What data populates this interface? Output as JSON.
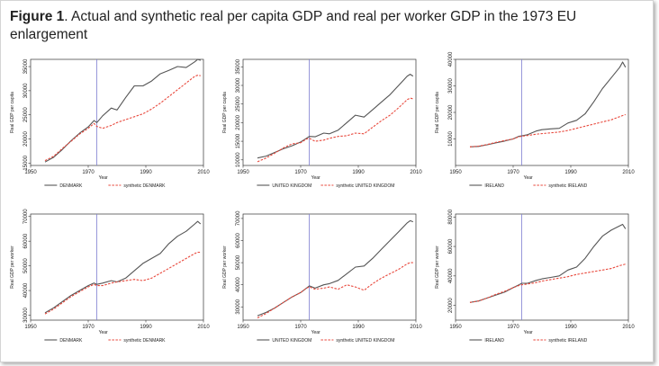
{
  "figure": {
    "label": "Figure 1",
    "caption": ". Actual and synthetic real per capita GDP and real per worker GDP in the 1973 EU enlargement"
  },
  "colors": {
    "actual": "#555555",
    "synthetic": "#e8483c",
    "treatment": "#7f7fd0"
  },
  "chart_data": [
    {
      "type": "line",
      "country": "DENMARK",
      "measure": "per capita",
      "xlabel": "Year",
      "ylabel": "Real GDP per capita",
      "xticks": [
        "1950",
        "1970",
        "1990",
        "2010"
      ],
      "xlim": [
        1950,
        2010
      ],
      "yticks": [
        "15000",
        "20000",
        "25000",
        "30000",
        "35000"
      ],
      "ylim": [
        14500,
        36500
      ],
      "treatment_year": 1973,
      "series": [
        {
          "name": "DENMARK",
          "style": "solid",
          "x": [
            1955,
            1958,
            1961,
            1964,
            1967,
            1970,
            1972,
            1973,
            1975,
            1978,
            1980,
            1983,
            1986,
            1989,
            1992,
            1995,
            1998,
            2001,
            2004,
            2007,
            2008,
            2009
          ],
          "y": [
            15200,
            16200,
            17800,
            19600,
            21200,
            22500,
            23800,
            23400,
            24800,
            26400,
            26000,
            28600,
            31000,
            31000,
            32000,
            33500,
            34200,
            35000,
            34800,
            36000,
            36500,
            36300
          ]
        },
        {
          "name": "synthetic DENMARK",
          "style": "dashed",
          "x": [
            1955,
            1958,
            1961,
            1964,
            1967,
            1970,
            1972,
            1973,
            1975,
            1978,
            1980,
            1983,
            1986,
            1989,
            1992,
            1995,
            1998,
            2001,
            2004,
            2007,
            2008,
            2009
          ],
          "y": [
            15500,
            16400,
            18000,
            19500,
            21000,
            22200,
            23200,
            22600,
            22200,
            22800,
            23400,
            24000,
            24600,
            25200,
            26200,
            27400,
            28800,
            30200,
            31600,
            33000,
            33200,
            33100
          ]
        }
      ]
    },
    {
      "type": "line",
      "country": "UNITED KINGDOM",
      "measure": "per capita",
      "xlabel": "Year",
      "ylabel": "Real GDP per capita",
      "xticks": [
        "1950",
        "1970",
        "1990",
        "2010"
      ],
      "xlim": [
        1950,
        2010
      ],
      "yticks": [
        "10000",
        "15000",
        "20000",
        "25000",
        "30000",
        "35000"
      ],
      "ylim": [
        8500,
        37000
      ],
      "treatment_year": 1973,
      "series": [
        {
          "name": "UNITED KINGDOM",
          "style": "solid",
          "x": [
            1955,
            1958,
            1961,
            1964,
            1967,
            1970,
            1972,
            1973,
            1975,
            1978,
            1980,
            1983,
            1986,
            1989,
            1992,
            1995,
            1998,
            2001,
            2004,
            2007,
            2008,
            2009
          ],
          "y": [
            10500,
            11000,
            12000,
            13000,
            13800,
            14800,
            15800,
            16300,
            16200,
            17200,
            17000,
            18000,
            20000,
            22000,
            21500,
            23500,
            25500,
            27500,
            30000,
            32500,
            33000,
            32500
          ]
        },
        {
          "name": "synthetic UNITED KINGDOM",
          "style": "dashed",
          "x": [
            1955,
            1958,
            1961,
            1964,
            1967,
            1970,
            1972,
            1973,
            1975,
            1978,
            1980,
            1983,
            1986,
            1989,
            1992,
            1995,
            1998,
            2001,
            2004,
            2007,
            2008,
            2009
          ],
          "y": [
            9500,
            10500,
            11800,
            13200,
            14300,
            14600,
            15600,
            15800,
            15000,
            15300,
            15800,
            16300,
            16500,
            17200,
            17000,
            18800,
            20500,
            22000,
            24000,
            26200,
            26600,
            26400
          ]
        }
      ]
    },
    {
      "type": "line",
      "country": "IRELAND",
      "measure": "per capita",
      "xlabel": "Year",
      "ylabel": "Real GDP per capita",
      "xticks": [
        "1950",
        "1970",
        "1990",
        "2010"
      ],
      "xlim": [
        1950,
        2010
      ],
      "yticks": [
        "10000",
        "20000",
        "30000",
        "40000"
      ],
      "ylim": [
        0,
        40000
      ],
      "treatment_year": 1973,
      "series": [
        {
          "name": "IRELAND",
          "style": "solid",
          "x": [
            1955,
            1958,
            1961,
            1964,
            1967,
            1970,
            1972,
            1973,
            1975,
            1978,
            1980,
            1983,
            1986,
            1989,
            1992,
            1995,
            1998,
            2001,
            2004,
            2007,
            2008,
            2009
          ],
          "y": [
            7000,
            7200,
            7800,
            8500,
            9200,
            10000,
            11000,
            11200,
            11600,
            13000,
            13500,
            13800,
            14000,
            16000,
            17000,
            19500,
            24000,
            29000,
            33000,
            37000,
            39000,
            37000
          ]
        },
        {
          "name": "synthetic IRELAND",
          "style": "dashed",
          "x": [
            1955,
            1958,
            1961,
            1964,
            1967,
            1970,
            1972,
            1973,
            1975,
            1978,
            1980,
            1983,
            1986,
            1989,
            1992,
            1995,
            1998,
            2001,
            2004,
            2007,
            2008,
            2009
          ],
          "y": [
            7000,
            7300,
            7900,
            8700,
            9400,
            10000,
            10800,
            11000,
            11300,
            11800,
            12000,
            12300,
            12600,
            13200,
            14000,
            14800,
            15600,
            16400,
            17200,
            18400,
            18800,
            19200
          ]
        }
      ]
    },
    {
      "type": "line",
      "country": "DENMARK",
      "measure": "per worker",
      "xlabel": "Year",
      "ylabel": "Real GDP per worker",
      "xticks": [
        "1950",
        "1970",
        "1990",
        "2010"
      ],
      "xlim": [
        1950,
        2010
      ],
      "yticks": [
        "30000",
        "40000",
        "50000",
        "60000",
        "70000"
      ],
      "ylim": [
        28000,
        71000
      ],
      "treatment_year": 1973,
      "series": [
        {
          "name": "DENMARK",
          "style": "solid",
          "x": [
            1955,
            1958,
            1961,
            1964,
            1967,
            1970,
            1972,
            1973,
            1975,
            1978,
            1980,
            1983,
            1986,
            1989,
            1992,
            1995,
            1998,
            2001,
            2004,
            2007,
            2008,
            2009
          ],
          "y": [
            31000,
            33000,
            35500,
            38000,
            40000,
            42000,
            43000,
            42500,
            43000,
            44000,
            43500,
            45000,
            48000,
            51000,
            53000,
            55000,
            59000,
            62000,
            64000,
            67000,
            68000,
            67000
          ]
        },
        {
          "name": "synthetic DENMARK",
          "style": "dashed",
          "x": [
            1955,
            1958,
            1961,
            1964,
            1967,
            1970,
            1972,
            1973,
            1975,
            1978,
            1980,
            1983,
            1986,
            1989,
            1992,
            1995,
            1998,
            2001,
            2004,
            2007,
            2008,
            2009
          ],
          "y": [
            30500,
            32500,
            35000,
            37500,
            39500,
            41500,
            42500,
            42000,
            42000,
            43000,
            43500,
            44000,
            44500,
            44000,
            45000,
            47000,
            49000,
            51000,
            53000,
            55000,
            55500,
            55500
          ]
        }
      ]
    },
    {
      "type": "line",
      "country": "UNITED KINGDOM",
      "measure": "per worker",
      "xlabel": "Year",
      "ylabel": "Real GDP per worker",
      "xticks": [
        "1950",
        "1970",
        "1990",
        "2010"
      ],
      "xlim": [
        1950,
        2010
      ],
      "yticks": [
        "30000",
        "40000",
        "50000",
        "60000",
        "70000"
      ],
      "ylim": [
        24000,
        72000
      ],
      "treatment_year": 1973,
      "series": [
        {
          "name": "UNITED KINGDOM",
          "style": "solid",
          "x": [
            1955,
            1958,
            1961,
            1964,
            1967,
            1970,
            1972,
            1973,
            1975,
            1978,
            1980,
            1983,
            1986,
            1989,
            1992,
            1995,
            1998,
            2001,
            2004,
            2007,
            2008,
            2009
          ],
          "y": [
            26000,
            27500,
            29500,
            32000,
            34500,
            36500,
            38500,
            39500,
            38500,
            40000,
            40500,
            42000,
            45000,
            48000,
            48500,
            52000,
            56000,
            60000,
            64000,
            68000,
            69000,
            68500
          ]
        },
        {
          "name": "synthetic UNITED KINGDOM",
          "style": "dashed",
          "x": [
            1955,
            1958,
            1961,
            1964,
            1967,
            1970,
            1972,
            1973,
            1975,
            1978,
            1980,
            1983,
            1986,
            1989,
            1992,
            1995,
            1998,
            2001,
            2004,
            2007,
            2008,
            2009
          ],
          "y": [
            25000,
            27000,
            29500,
            32000,
            34500,
            36500,
            38500,
            39000,
            38000,
            38500,
            39000,
            38000,
            40000,
            39000,
            37500,
            40500,
            43000,
            45000,
            47000,
            49500,
            50000,
            50000
          ]
        }
      ]
    },
    {
      "type": "line",
      "country": "IRELAND",
      "measure": "per worker",
      "xlabel": "Year",
      "ylabel": "Real GDP per worker",
      "xticks": [
        "1950",
        "1970",
        "1990",
        "2010"
      ],
      "xlim": [
        1950,
        2010
      ],
      "yticks": [
        "20000",
        "40000",
        "60000",
        "80000"
      ],
      "ylim": [
        10000,
        82000
      ],
      "treatment_year": 1973,
      "series": [
        {
          "name": "IRELAND",
          "style": "solid",
          "x": [
            1955,
            1958,
            1961,
            1964,
            1967,
            1970,
            1972,
            1973,
            1975,
            1978,
            1980,
            1983,
            1986,
            1989,
            1992,
            1995,
            1998,
            2001,
            2004,
            2007,
            2008,
            2009
          ],
          "y": [
            22000,
            23000,
            25000,
            27000,
            29000,
            32000,
            34000,
            35000,
            35000,
            37000,
            38000,
            39000,
            40000,
            44000,
            46000,
            52000,
            60000,
            67000,
            71000,
            74000,
            75000,
            72000
          ]
        },
        {
          "name": "synthetic IRELAND",
          "style": "dashed",
          "x": [
            1955,
            1958,
            1961,
            1964,
            1967,
            1970,
            1972,
            1973,
            1975,
            1978,
            1980,
            1983,
            1986,
            1989,
            1992,
            1995,
            1998,
            2001,
            2004,
            2007,
            2008,
            2009
          ],
          "y": [
            22000,
            23000,
            25000,
            27500,
            29500,
            32000,
            33500,
            34000,
            34500,
            35500,
            36500,
            37500,
            38500,
            39500,
            41000,
            42000,
            43000,
            44000,
            45000,
            47000,
            47500,
            48000
          ]
        }
      ]
    }
  ]
}
